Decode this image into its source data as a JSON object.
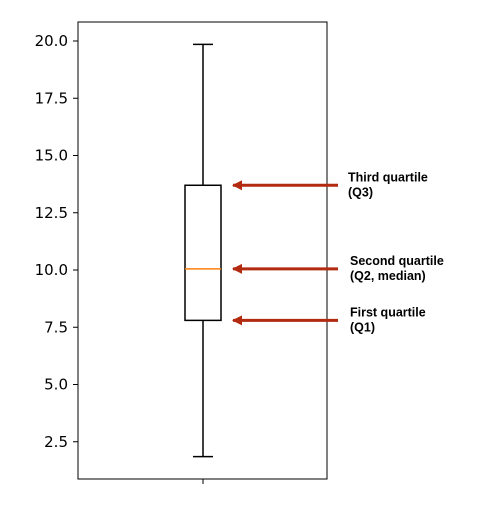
{
  "chart_data": {
    "type": "box",
    "title": "",
    "xlabel": "",
    "ylabel": "",
    "ylim": [
      1.0,
      21.0
    ],
    "yticks": [
      "2.5",
      "5.0",
      "7.5",
      "10.0",
      "12.5",
      "15.0",
      "17.5",
      "20.0"
    ],
    "box": {
      "whisker_low": 1.85,
      "q1": 7.8,
      "median": 10.05,
      "q3": 13.7,
      "whisker_high": 19.85
    },
    "colors": {
      "box": "#000000",
      "median": "#ff7f0e",
      "arrows": "#b22a10"
    },
    "annotations": [
      {
        "target": "q3",
        "line1": "Third quartile",
        "line2": "(Q3)"
      },
      {
        "target": "median",
        "line1": "Second quartile",
        "line2": "(Q2, median)"
      },
      {
        "target": "q1",
        "line1": "First quartile",
        "line2": "(Q1)"
      }
    ]
  }
}
